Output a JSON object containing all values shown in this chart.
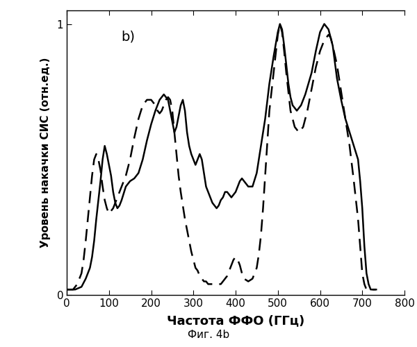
{
  "title": "",
  "xlabel": "Частота ФФО (ГГц)",
  "ylabel": "Уровень накачки СИС (отн.ед.)",
  "caption": "Фиг. 4b",
  "label_b": "b)",
  "xlim": [
    0,
    800
  ],
  "ylim": [
    0,
    1.05
  ],
  "xticks": [
    0,
    100,
    200,
    300,
    400,
    500,
    600,
    700,
    800
  ],
  "yticks": [
    0,
    1
  ],
  "background_color": "#ffffff",
  "solid_color": "#000000",
  "dashed_color": "#000000",
  "solid_lw": 1.8,
  "dashed_lw": 1.8,
  "solid_x": [
    0,
    20,
    35,
    45,
    55,
    60,
    65,
    70,
    75,
    80,
    85,
    90,
    95,
    100,
    105,
    110,
    115,
    120,
    125,
    130,
    140,
    150,
    160,
    170,
    180,
    190,
    200,
    210,
    220,
    230,
    240,
    245,
    250,
    255,
    260,
    265,
    270,
    275,
    280,
    285,
    290,
    295,
    300,
    305,
    310,
    315,
    320,
    325,
    330,
    335,
    340,
    345,
    350,
    355,
    360,
    365,
    370,
    375,
    380,
    385,
    390,
    395,
    400,
    405,
    410,
    415,
    420,
    430,
    440,
    450,
    460,
    470,
    480,
    490,
    500,
    505,
    510,
    515,
    520,
    525,
    530,
    535,
    545,
    555,
    565,
    580,
    590,
    600,
    610,
    620,
    630,
    640,
    650,
    660,
    670,
    680,
    690,
    695,
    700,
    705,
    710,
    715,
    720,
    725,
    730
  ],
  "solid_y": [
    0.02,
    0.02,
    0.03,
    0.06,
    0.1,
    0.14,
    0.2,
    0.28,
    0.35,
    0.42,
    0.5,
    0.55,
    0.52,
    0.48,
    0.44,
    0.38,
    0.34,
    0.32,
    0.33,
    0.35,
    0.4,
    0.42,
    0.43,
    0.45,
    0.5,
    0.57,
    0.63,
    0.68,
    0.72,
    0.74,
    0.72,
    0.68,
    0.64,
    0.6,
    0.62,
    0.66,
    0.7,
    0.72,
    0.68,
    0.6,
    0.55,
    0.52,
    0.5,
    0.48,
    0.5,
    0.52,
    0.5,
    0.45,
    0.4,
    0.38,
    0.36,
    0.34,
    0.33,
    0.32,
    0.33,
    0.35,
    0.36,
    0.38,
    0.38,
    0.37,
    0.36,
    0.37,
    0.38,
    0.4,
    0.42,
    0.43,
    0.42,
    0.4,
    0.4,
    0.45,
    0.55,
    0.65,
    0.78,
    0.88,
    0.97,
    1.0,
    0.98,
    0.92,
    0.85,
    0.78,
    0.73,
    0.7,
    0.68,
    0.7,
    0.74,
    0.82,
    0.9,
    0.97,
    1.0,
    0.98,
    0.92,
    0.8,
    0.72,
    0.65,
    0.6,
    0.55,
    0.5,
    0.42,
    0.32,
    0.18,
    0.08,
    0.04,
    0.02,
    0.02,
    0.02
  ],
  "dashed_x": [
    0,
    15,
    25,
    35,
    40,
    45,
    50,
    55,
    60,
    65,
    70,
    75,
    80,
    85,
    90,
    95,
    100,
    110,
    120,
    130,
    140,
    150,
    160,
    170,
    180,
    190,
    200,
    210,
    215,
    220,
    225,
    230,
    235,
    240,
    245,
    250,
    255,
    260,
    265,
    270,
    280,
    290,
    295,
    300,
    305,
    310,
    315,
    320,
    325,
    330,
    335,
    340,
    345,
    350,
    355,
    360,
    365,
    370,
    375,
    380,
    385,
    390,
    395,
    400,
    405,
    410,
    415,
    420,
    430,
    440,
    450,
    455,
    460,
    465,
    470,
    475,
    480,
    490,
    500,
    505,
    510,
    515,
    520,
    525,
    530,
    540,
    550,
    560,
    570,
    580,
    590,
    600,
    610,
    620,
    625,
    630,
    640,
    650,
    660,
    670,
    680,
    690,
    695,
    700,
    705,
    710,
    715,
    720,
    725,
    730,
    735
  ],
  "dashed_y": [
    0.02,
    0.02,
    0.04,
    0.08,
    0.13,
    0.2,
    0.28,
    0.36,
    0.44,
    0.5,
    0.52,
    0.5,
    0.46,
    0.4,
    0.35,
    0.32,
    0.3,
    0.32,
    0.36,
    0.4,
    0.44,
    0.5,
    0.58,
    0.65,
    0.7,
    0.72,
    0.72,
    0.7,
    0.68,
    0.67,
    0.68,
    0.7,
    0.72,
    0.73,
    0.72,
    0.68,
    0.6,
    0.52,
    0.44,
    0.38,
    0.28,
    0.2,
    0.16,
    0.13,
    0.1,
    0.09,
    0.07,
    0.06,
    0.05,
    0.05,
    0.04,
    0.04,
    0.04,
    0.04,
    0.04,
    0.04,
    0.04,
    0.05,
    0.06,
    0.07,
    0.09,
    0.11,
    0.13,
    0.14,
    0.13,
    0.11,
    0.08,
    0.06,
    0.05,
    0.06,
    0.1,
    0.15,
    0.22,
    0.32,
    0.44,
    0.56,
    0.68,
    0.82,
    0.96,
    1.0,
    0.97,
    0.9,
    0.82,
    0.75,
    0.68,
    0.62,
    0.6,
    0.62,
    0.68,
    0.76,
    0.84,
    0.9,
    0.94,
    0.96,
    0.95,
    0.92,
    0.85,
    0.75,
    0.65,
    0.55,
    0.42,
    0.28,
    0.18,
    0.08,
    0.04,
    0.02,
    0.02,
    0.02,
    0.02,
    0.02,
    0.02
  ]
}
